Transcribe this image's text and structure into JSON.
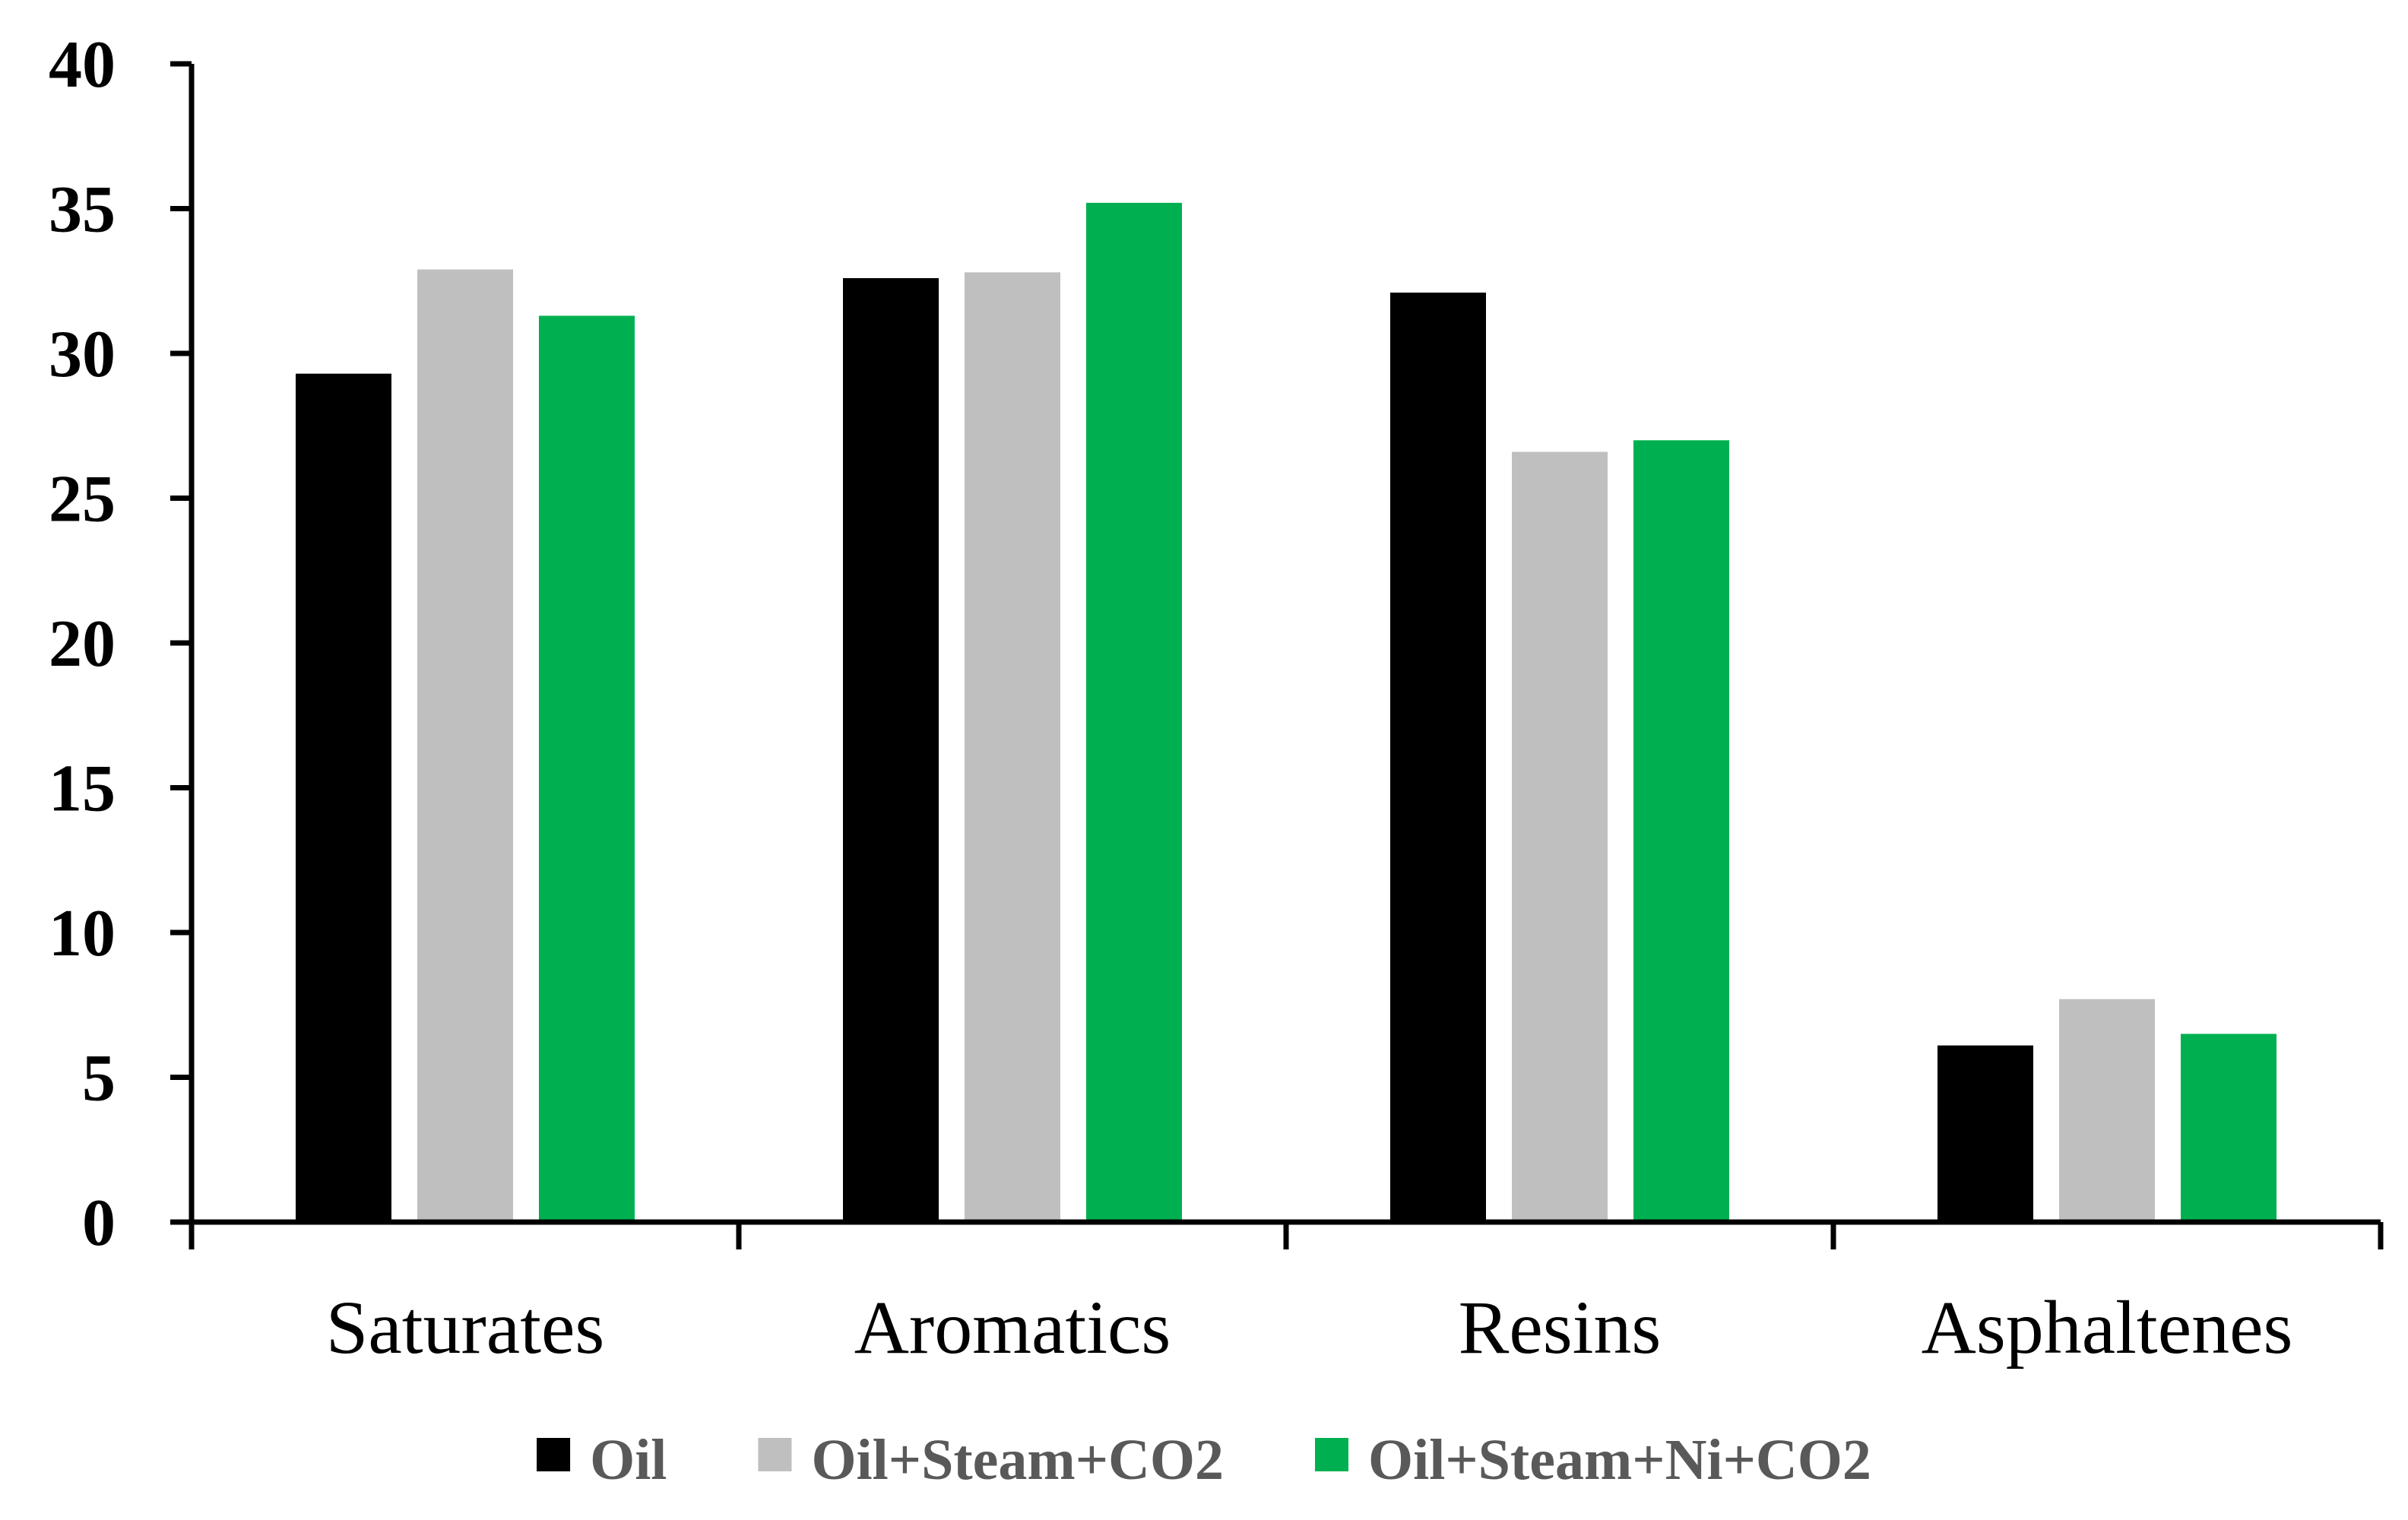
{
  "chart_data": {
    "type": "bar",
    "title": "",
    "xlabel": "",
    "ylabel": "",
    "categories": [
      "Saturates",
      "Aromatics",
      "Resins",
      "Asphaltenes"
    ],
    "series": [
      {
        "name": "Oil",
        "color": "#000000",
        "values": [
          29.3,
          32.6,
          32.1,
          6.1
        ]
      },
      {
        "name": "Oil+Steam+CO2",
        "color": "#bfbfbf",
        "values": [
          32.9,
          32.8,
          26.6,
          7.7
        ]
      },
      {
        "name": "Oil+Steam+Ni+CO2",
        "color": "#00b050",
        "values": [
          31.3,
          35.2,
          27.0,
          6.5
        ]
      }
    ],
    "ylim": [
      0,
      40
    ],
    "yticks": [
      "0",
      "5",
      "10",
      "15",
      "20",
      "25",
      "30",
      "35",
      "40"
    ],
    "grid": false,
    "legend_position": "bottom"
  }
}
